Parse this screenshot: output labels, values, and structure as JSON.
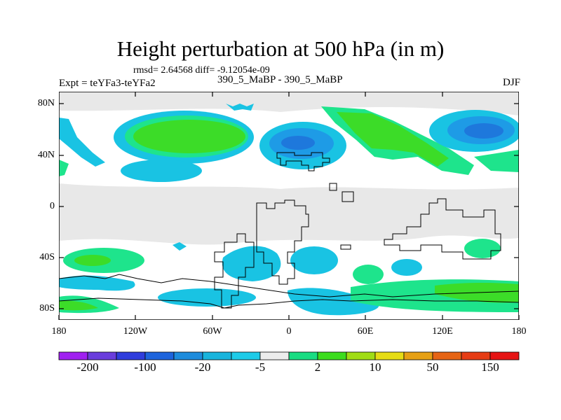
{
  "title": "Height perturbation at 500 hPa (in m)",
  "stats": "rmsd= 2.64568 diff= -9.12054e-09",
  "left_label": "Expt = teYFa3-teYFa2",
  "center_label": "390_5_MaBP - 390_5_MaBP",
  "right_label": "DJF",
  "lat_ticks": [
    "80N",
    "40N",
    "0",
    "40S",
    "80S"
  ],
  "lon_ticks": [
    "180",
    "120W",
    "60W",
    "0",
    "60E",
    "120E",
    "180"
  ],
  "colorbar": {
    "colors": [
      "#a020f0",
      "#6a3ddc",
      "#2f3ddc",
      "#1e64dc",
      "#1e8cdc",
      "#19b4dc",
      "#1ecbe8",
      "#ececec",
      "#19dc82",
      "#3cdc1e",
      "#a0dc14",
      "#e6dc14",
      "#e6a014",
      "#e66414",
      "#e63c14",
      "#e61414"
    ],
    "labels": [
      "-200",
      "-100",
      "-20",
      "-5",
      "2",
      "10",
      "50",
      "150"
    ]
  },
  "colors": {
    "background": "#e8e8e8",
    "white": "#ffffff",
    "cyan": "#19c3e3",
    "blue_light": "#1e9be6",
    "blue_dark": "#1e78dc",
    "green_light": "#1ee48c",
    "green": "#3cdc28"
  }
}
